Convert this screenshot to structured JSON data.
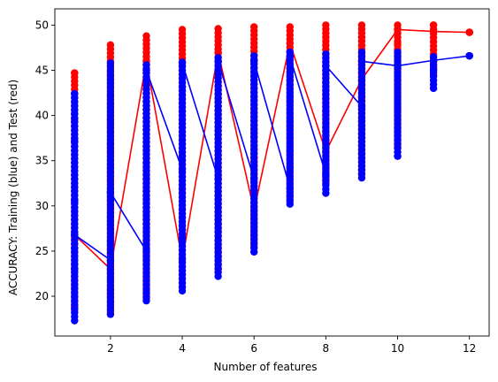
{
  "chart_data": {
    "type": "scatter",
    "title": "",
    "xlabel": "Number of features",
    "ylabel": "ACCURACY: Training (blue) and Test (red)",
    "xlim": [
      0.45,
      12.55
    ],
    "ylim": [
      15.6,
      51.8
    ],
    "xticks": [
      2,
      4,
      6,
      8,
      10,
      12
    ],
    "yticks": [
      20,
      25,
      30,
      35,
      40,
      45,
      50
    ],
    "grid": false,
    "legend": "none",
    "colors": {
      "test": "#ff0000",
      "train": "#0000ff",
      "axes": "#000000"
    },
    "series": [
      {
        "key": "test",
        "x": [
          1,
          2,
          3,
          4,
          5,
          6,
          7,
          8,
          9,
          10,
          11,
          12
        ],
        "line": [
          26.8,
          23.0,
          46.0,
          24.0,
          47.0,
          29.5,
          48.0,
          36.0,
          44.0,
          49.5,
          49.3,
          49.2
        ],
        "x_band": [
          1,
          2,
          3,
          4,
          5,
          6,
          7,
          8,
          9,
          10,
          11,
          12
        ],
        "low": [
          18.5,
          18.2,
          19.8,
          21.0,
          23.0,
          25.5,
          30.5,
          32.5,
          33.5,
          36.5,
          44.5,
          49.2
        ],
        "high": [
          44.7,
          47.8,
          48.8,
          49.5,
          49.6,
          49.8,
          49.8,
          50.0,
          50.0,
          50.0,
          50.0,
          49.2
        ],
        "extra_points": [
          [
            1,
            39.5
          ],
          [
            1,
            44.7
          ],
          [
            1,
            18.8
          ],
          [
            10,
            36.5
          ],
          [
            10,
            48.0
          ],
          [
            11,
            50.0
          ]
        ]
      },
      {
        "key": "train",
        "x": [
          1,
          1,
          2,
          2,
          3,
          3,
          4,
          4,
          5,
          5,
          6,
          6,
          7,
          7,
          8,
          8,
          9,
          9,
          10,
          11,
          12
        ],
        "line": [
          42.4,
          26.8,
          24.0,
          31.5,
          25.0,
          45.0,
          34.0,
          45.8,
          33.0,
          46.0,
          33.0,
          46.0,
          32.0,
          46.5,
          33.5,
          45.5,
          41.0,
          46.0,
          45.5,
          46.1,
          46.6
        ],
        "x_band": [
          1,
          2,
          3,
          4,
          5,
          6,
          7,
          8,
          9,
          10,
          11,
          12
        ],
        "low": [
          17.3,
          18.0,
          19.5,
          20.6,
          22.2,
          24.9,
          30.2,
          31.4,
          33.1,
          35.5,
          43.0,
          46.6
        ],
        "high": [
          42.4,
          45.8,
          45.6,
          45.9,
          46.4,
          46.6,
          47.0,
          46.8,
          47.0,
          47.0,
          46.5,
          46.6
        ],
        "extra_points": [
          [
            1,
            37.2
          ],
          [
            1,
            30.5
          ],
          [
            1,
            25.3
          ],
          [
            1,
            23.0
          ],
          [
            11,
            45.0
          ],
          [
            10,
            35.5
          ]
        ]
      }
    ]
  }
}
